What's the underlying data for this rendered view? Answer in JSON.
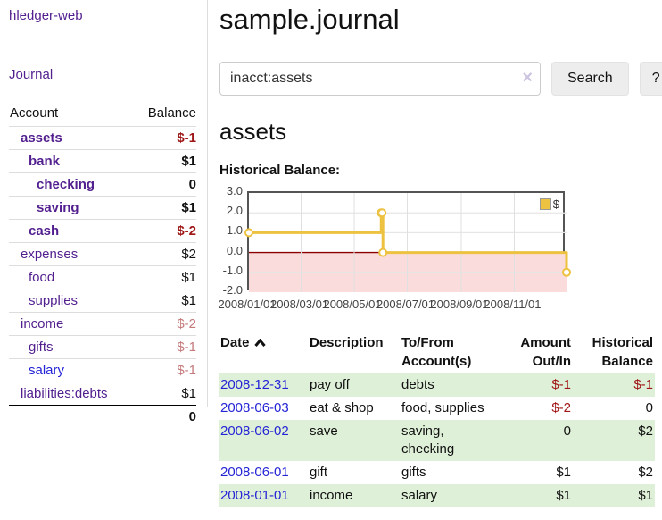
{
  "colors": {
    "link_purple": "#521f8f",
    "link_blue": "#2525d6",
    "negative_strong_red": "#9c1414",
    "negative_soft_rose": "#c4797b",
    "register_negative_red": "#a01616",
    "row_stripe_green": "#dff0d8",
    "series_gold": "#edc240",
    "negative_region_pink": "#fbdcdc",
    "zero_line_red": "#8b0000",
    "chart_border_gray": "#545454"
  },
  "sidebar": {
    "app_title": "hledger-web",
    "nav_journal": "Journal",
    "accounts": {
      "header_account": "Account",
      "header_balance": "Balance",
      "rows": [
        {
          "name": "assets",
          "balance": "$-1",
          "indent": 1,
          "bold": true,
          "balance_style": "neg-strong",
          "link": "purple"
        },
        {
          "name": "bank",
          "balance": "$1",
          "indent": 2,
          "bold": true,
          "balance_style": "pos",
          "link": "purple"
        },
        {
          "name": "checking",
          "balance": "0",
          "indent": 3,
          "bold": true,
          "balance_style": "pos",
          "link": "purple"
        },
        {
          "name": "saving",
          "balance": "$1",
          "indent": 3,
          "bold": true,
          "balance_style": "pos",
          "link": "purple"
        },
        {
          "name": "cash",
          "balance": "$-2",
          "indent": 2,
          "bold": true,
          "balance_style": "neg-strong",
          "link": "purple"
        },
        {
          "name": "expenses",
          "balance": "$2",
          "indent": 1,
          "bold": false,
          "balance_style": "pos",
          "link": "purple"
        },
        {
          "name": "food",
          "balance": "$1",
          "indent": 2,
          "bold": false,
          "balance_style": "pos",
          "link": "purple"
        },
        {
          "name": "supplies",
          "balance": "$1",
          "indent": 2,
          "bold": false,
          "balance_style": "pos",
          "link": "purple"
        },
        {
          "name": "income",
          "balance": "$-2",
          "indent": 1,
          "bold": false,
          "balance_style": "neg-soft",
          "link": "purple"
        },
        {
          "name": "gifts",
          "balance": "$-1",
          "indent": 2,
          "bold": false,
          "balance_style": "neg-soft",
          "link": "purple"
        },
        {
          "name": "salary",
          "balance": "$-1",
          "indent": 2,
          "bold": false,
          "balance_style": "neg-soft",
          "link": "blue"
        },
        {
          "name": "liabilities:debts",
          "balance": "$1",
          "indent": 1,
          "bold": false,
          "balance_style": "pos",
          "link": "purple"
        }
      ],
      "total": "0"
    }
  },
  "main": {
    "page_title": "sample.journal",
    "search": {
      "value": "inacct:assets",
      "clear_label": "×",
      "search_button": "Search",
      "help_button": "?"
    },
    "account_heading": "assets",
    "chart_caption": "Historical Balance:"
  },
  "chart_data": {
    "type": "line",
    "subtype": "step-after",
    "title": "Historical Balance",
    "legend": [
      "$"
    ],
    "legend_position": "top-right",
    "grid": true,
    "ylim": [
      -2.0,
      3.0
    ],
    "yticks": [
      "3.0",
      "2.0",
      "1.0",
      "0.0",
      "-1.0",
      "-2.0"
    ],
    "ytick_values": [
      3,
      2,
      1,
      0,
      -1,
      -2
    ],
    "xtick_labels": [
      "2008/01/01",
      "2008/03/01",
      "2008/05/01",
      "2008/07/01",
      "2008/09/01",
      "2008/11/01"
    ],
    "xtick_days": [
      0,
      60,
      121,
      182,
      244,
      305
    ],
    "x_range_days": [
      0,
      365
    ],
    "negative_region_shaded": true,
    "series": [
      {
        "name": "$",
        "color": "#edc240",
        "points": [
          {
            "date": "2008-01-01",
            "day": 0,
            "value": 1
          },
          {
            "date": "2008-06-01",
            "day": 152,
            "value": 2
          },
          {
            "date": "2008-06-02",
            "day": 153,
            "value": 2
          },
          {
            "date": "2008-06-03",
            "day": 154,
            "value": 0
          },
          {
            "date": "2008-12-31",
            "day": 365,
            "value": -1
          }
        ]
      }
    ]
  },
  "register": {
    "headers": {
      "date": "Date",
      "description": "Description",
      "accounts": "To/From Account(s)",
      "amount": "Amount Out/In",
      "balance": "Historical Balance"
    },
    "rows": [
      {
        "date": "2008-12-31",
        "description": "pay off",
        "accounts": "debts",
        "amount": "$-1",
        "balance": "$-1",
        "amount_negative": true,
        "balance_negative": true
      },
      {
        "date": "2008-06-03",
        "description": "eat & shop",
        "accounts": "food, supplies",
        "amount": "$-2",
        "balance": "0",
        "amount_negative": true,
        "balance_negative": false
      },
      {
        "date": "2008-06-02",
        "description": "save",
        "accounts": "saving, checking",
        "amount": "0",
        "balance": "$2",
        "amount_negative": false,
        "balance_negative": false
      },
      {
        "date": "2008-06-01",
        "description": "gift",
        "accounts": "gifts",
        "amount": "$1",
        "balance": "$2",
        "amount_negative": false,
        "balance_negative": false
      },
      {
        "date": "2008-01-01",
        "description": "income",
        "accounts": "salary",
        "amount": "$1",
        "balance": "$1",
        "amount_negative": false,
        "balance_negative": false
      }
    ]
  }
}
